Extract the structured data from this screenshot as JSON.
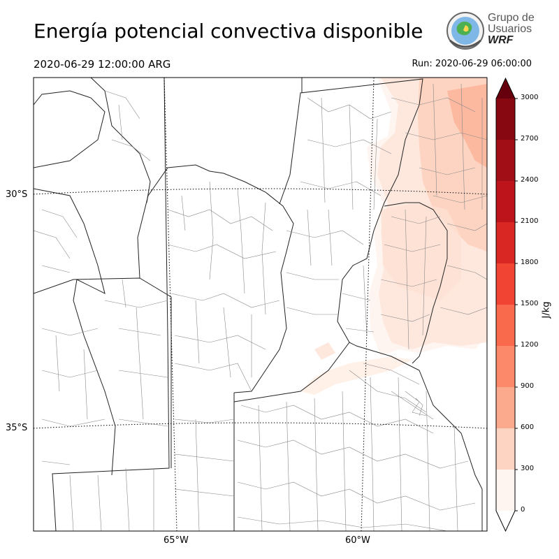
{
  "header": {
    "title": "Energía potencial convectiva disponible",
    "valid_time": "2020-06-29 12:00:00 ARG",
    "run_time": "Run: 2020-06-29 06:00:00"
  },
  "logo": {
    "line1": "Grupo de",
    "line2": "Usuarios",
    "line3": "WRF"
  },
  "map": {
    "lat_labels": [
      "30°S",
      "35°S"
    ],
    "lon_labels": [
      "65°W",
      "60°W"
    ]
  },
  "colorbar": {
    "unit": "J/kg",
    "ticks": [
      "0",
      "300",
      "600",
      "900",
      "1200",
      "1500",
      "1800",
      "2100",
      "2400",
      "2700",
      "3000"
    ],
    "colors": [
      "#fff5f0",
      "#fdd4c2",
      "#fcaa8e",
      "#fc8a6a",
      "#f96a4c",
      "#f14432",
      "#d92723",
      "#bc141a",
      "#a10e15",
      "#870811"
    ],
    "extend_top_color": "#67000d",
    "extend_bottom_color": "#ffffff"
  }
}
